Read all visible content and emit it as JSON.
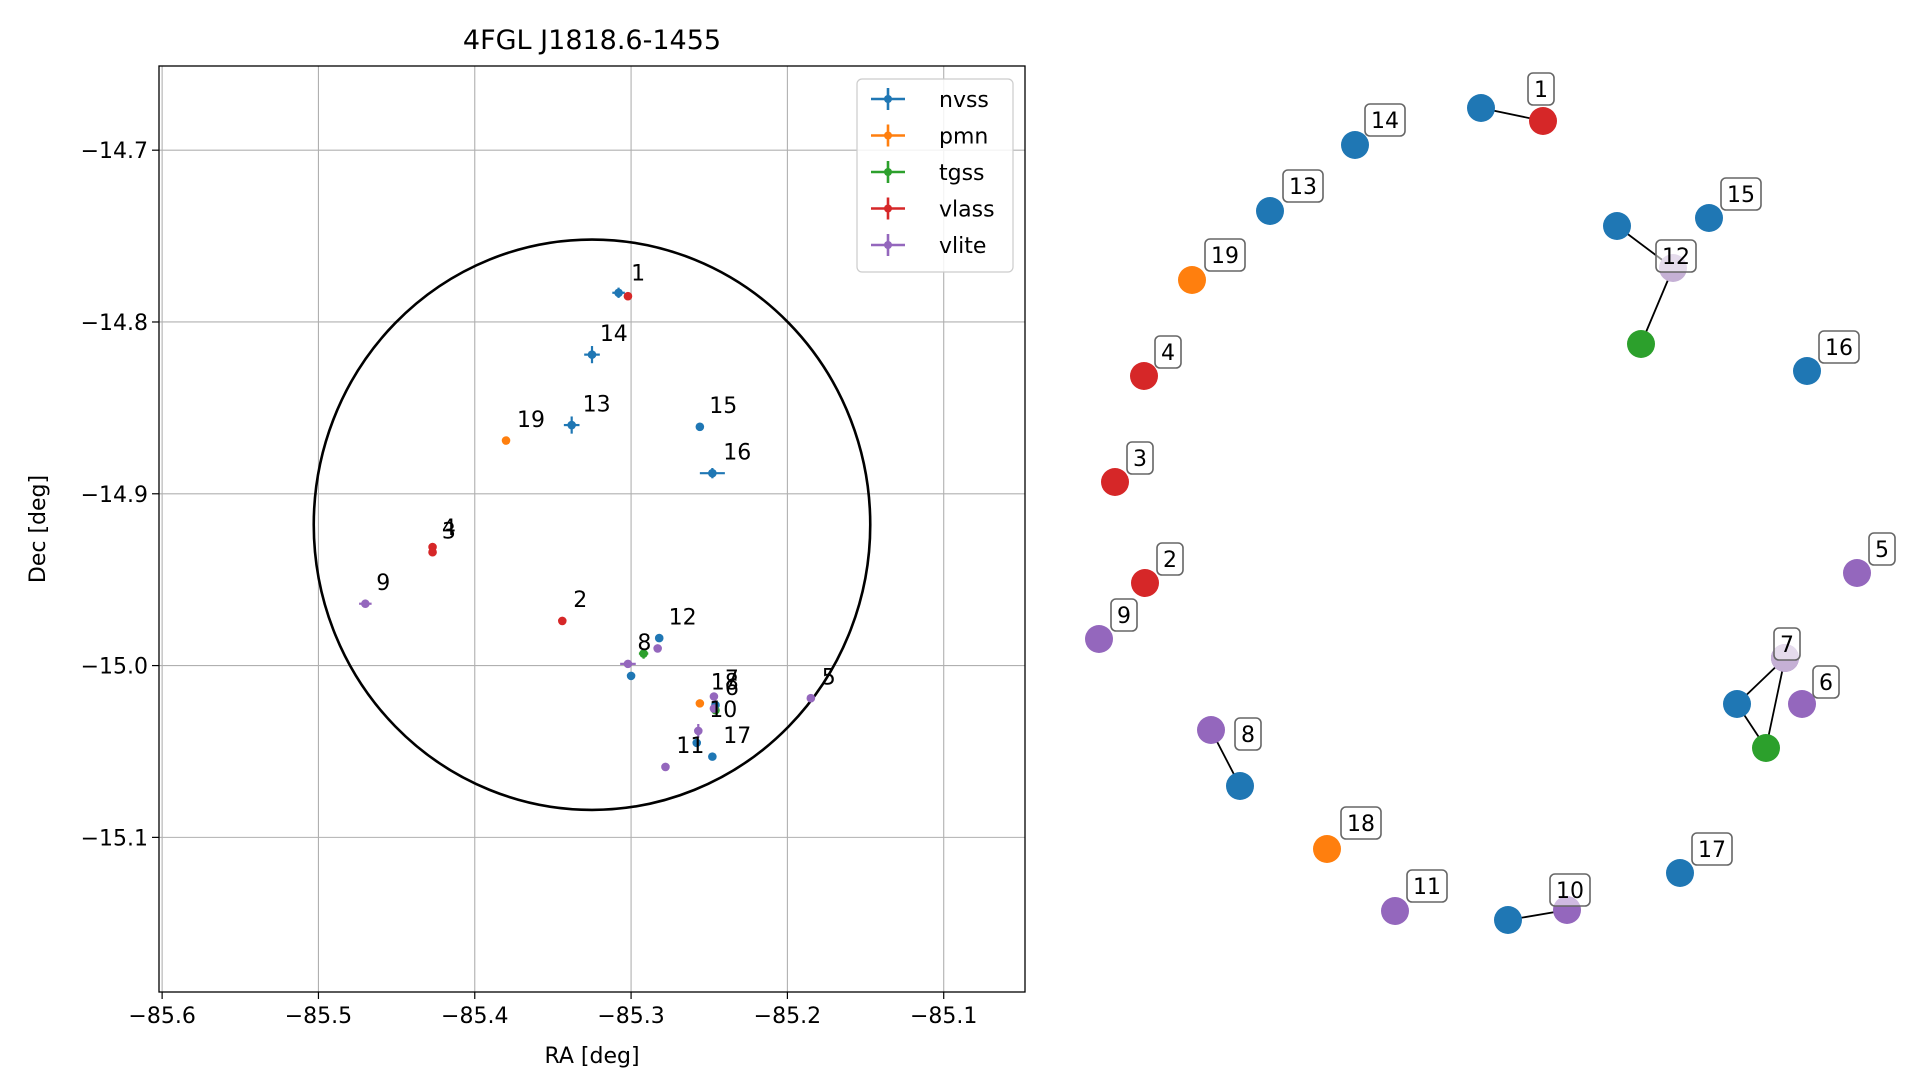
{
  "chart_data": [
    {
      "type": "scatter",
      "title": "4FGL J1818.6-1455",
      "xlabel": "RA [deg]",
      "ylabel": "Dec [deg]",
      "xlim": [
        -85.602,
        -85.048
      ],
      "ylim": [
        -15.19,
        -14.651
      ],
      "xticks": [
        -85.6,
        -85.5,
        -85.4,
        -85.3,
        -85.2,
        -85.1
      ],
      "xtick_labels": [
        "−85.6",
        "−85.5",
        "−85.4",
        "−85.3",
        "−85.2",
        "−85.1"
      ],
      "yticks": [
        -14.7,
        -14.8,
        -14.9,
        -15.0,
        -15.1
      ],
      "ytick_labels": [
        "−14.7",
        "−14.8",
        "−14.9",
        "−15.0",
        "−15.1"
      ],
      "grid": true,
      "legend_position": "top-right",
      "legend": [
        "nvss",
        "pmn",
        "tgss",
        "vlass",
        "vlite"
      ],
      "colors": {
        "nvss": "#1f77b4",
        "pmn": "#ff7f0e",
        "tgss": "#2ca02c",
        "vlass": "#d62728",
        "vlite": "#9467bd"
      },
      "ellipse": {
        "center": [
          -85.325,
          -14.918
        ],
        "ra_radius": 0.178,
        "dec_radius": 0.166
      },
      "series": [
        {
          "name": "nvss",
          "points": [
            {
              "x": -85.308,
              "y": -14.783,
              "xerr": 0.004,
              "yerr": 0.003
            },
            {
              "x": -85.325,
              "y": -14.819,
              "xerr": 0.005,
              "yerr": 0.005
            },
            {
              "x": -85.338,
              "y": -14.86,
              "xerr": 0.005,
              "yerr": 0.005
            },
            {
              "x": -85.256,
              "y": -14.861,
              "xerr": 0.002,
              "yerr": 0.002
            },
            {
              "x": -85.248,
              "y": -14.888,
              "xerr": 0.008,
              "yerr": 0.003
            },
            {
              "x": -85.282,
              "y": -14.984,
              "xerr": 0.002,
              "yerr": 0.002
            },
            {
              "x": -85.3,
              "y": -15.006,
              "xerr": 0.002,
              "yerr": 0.002
            },
            {
              "x": -85.248,
              "y": -15.053,
              "xerr": 0.002,
              "yerr": 0.002
            },
            {
              "x": -85.258,
              "y": -15.045,
              "xerr": 0.002,
              "yerr": 0.002
            },
            {
              "x": -85.246,
              "y": -15.023,
              "xerr": 0.002,
              "yerr": 0.002
            }
          ]
        },
        {
          "name": "pmn",
          "points": [
            {
              "x": -85.38,
              "y": -14.869,
              "xerr": 0.0,
              "yerr": 0.0
            },
            {
              "x": -85.256,
              "y": -15.022,
              "xerr": 0.0,
              "yerr": 0.0
            }
          ]
        },
        {
          "name": "tgss",
          "points": [
            {
              "x": -85.292,
              "y": -14.993,
              "xerr": 0.003,
              "yerr": 0.003
            },
            {
              "x": -85.246,
              "y": -15.026,
              "xerr": 0.002,
              "yerr": 0.002
            }
          ]
        },
        {
          "name": "vlass",
          "points": [
            {
              "x": -85.302,
              "y": -14.785,
              "xerr": 0.0,
              "yerr": 0.0
            },
            {
              "x": -85.427,
              "y": -14.931,
              "xerr": 0.0,
              "yerr": 0.0
            },
            {
              "x": -85.427,
              "y": -14.934,
              "xerr": 0.0,
              "yerr": 0.0
            },
            {
              "x": -85.344,
              "y": -14.974,
              "xerr": 0.0,
              "yerr": 0.0
            }
          ]
        },
        {
          "name": "vlite",
          "points": [
            {
              "x": -85.47,
              "y": -14.964,
              "xerr": 0.004,
              "yerr": 0.002
            },
            {
              "x": -85.302,
              "y": -14.999,
              "xerr": 0.005,
              "yerr": 0.002
            },
            {
              "x": -85.283,
              "y": -14.99,
              "xerr": 0.002,
              "yerr": 0.002
            },
            {
              "x": -85.185,
              "y": -15.019,
              "xerr": 0.002,
              "yerr": 0.002
            },
            {
              "x": -85.247,
              "y": -15.018,
              "xerr": 0.002,
              "yerr": 0.002
            },
            {
              "x": -85.247,
              "y": -15.025,
              "xerr": 0.002,
              "yerr": 0.002
            },
            {
              "x": -85.257,
              "y": -15.038,
              "xerr": 0.002,
              "yerr": 0.004
            },
            {
              "x": -85.278,
              "y": -15.059,
              "xerr": 0.002,
              "yerr": 0.002
            }
          ]
        }
      ],
      "annotations": [
        {
          "text": "1",
          "x": -85.3,
          "y": -14.776
        },
        {
          "text": "14",
          "x": -85.32,
          "y": -14.811
        },
        {
          "text": "19",
          "x": -85.373,
          "y": -14.861
        },
        {
          "text": "13",
          "x": -85.331,
          "y": -14.852
        },
        {
          "text": "15",
          "x": -85.25,
          "y": -14.853
        },
        {
          "text": "16",
          "x": -85.241,
          "y": -14.88
        },
        {
          "text": "4",
          "x": -85.421,
          "y": -14.924
        },
        {
          "text": "3",
          "x": -85.421,
          "y": -14.926
        },
        {
          "text": "9",
          "x": -85.463,
          "y": -14.956
        },
        {
          "text": "2",
          "x": -85.337,
          "y": -14.966
        },
        {
          "text": "12",
          "x": -85.276,
          "y": -14.976
        },
        {
          "text": "8",
          "x": -85.296,
          "y": -14.991
        },
        {
          "text": "5",
          "x": -85.178,
          "y": -15.011
        },
        {
          "text": "18",
          "x": -85.249,
          "y": -15.014
        },
        {
          "text": "7",
          "x": -85.24,
          "y": -15.012
        },
        {
          "text": "6",
          "x": -85.24,
          "y": -15.017
        },
        {
          "text": "10",
          "x": -85.25,
          "y": -15.03
        },
        {
          "text": "17",
          "x": -85.241,
          "y": -15.045
        },
        {
          "text": "11",
          "x": -85.271,
          "y": -15.051
        }
      ]
    },
    {
      "type": "network",
      "colors": {
        "nvss": "#1f77b4",
        "pmn": "#ff7f0e",
        "tgss": "#2ca02c",
        "vlass": "#d62728",
        "vlite": "#9467bd",
        "light_vlite": "#c5b0d5"
      },
      "nodes": [
        {
          "id": "n1",
          "cat": "nvss",
          "label": ""
        },
        {
          "id": "v1",
          "cat": "vlass",
          "label": "1"
        },
        {
          "id": "n14",
          "cat": "nvss",
          "label": "14"
        },
        {
          "id": "n13",
          "cat": "nvss",
          "label": "13"
        },
        {
          "id": "p19",
          "cat": "pmn",
          "label": "19"
        },
        {
          "id": "n15a",
          "cat": "nvss",
          "label": ""
        },
        {
          "id": "l12",
          "cat": "light_vlite",
          "label": "12"
        },
        {
          "id": "t12",
          "cat": "tgss",
          "label": ""
        },
        {
          "id": "n15",
          "cat": "nvss",
          "label": "15"
        },
        {
          "id": "v4",
          "cat": "vlass",
          "label": "4"
        },
        {
          "id": "n16",
          "cat": "nvss",
          "label": "16"
        },
        {
          "id": "v3",
          "cat": "vlass",
          "label": "3"
        },
        {
          "id": "v2",
          "cat": "vlass",
          "label": "2"
        },
        {
          "id": "u9",
          "cat": "vlite",
          "label": "9"
        },
        {
          "id": "u5",
          "cat": "vlite",
          "label": "5"
        },
        {
          "id": "u7a",
          "cat": "vlite",
          "label": ""
        },
        {
          "id": "n7",
          "cat": "nvss",
          "label": ""
        },
        {
          "id": "t7",
          "cat": "tgss",
          "label": ""
        },
        {
          "id": "l7",
          "cat": "light_vlite",
          "label": "7"
        },
        {
          "id": "u6",
          "cat": "vlite",
          "label": "6"
        },
        {
          "id": "u8",
          "cat": "vlite",
          "label": "8"
        },
        {
          "id": "n8",
          "cat": "nvss",
          "label": ""
        },
        {
          "id": "p18",
          "cat": "pmn",
          "label": "18"
        },
        {
          "id": "n17",
          "cat": "nvss",
          "label": "17"
        },
        {
          "id": "u11",
          "cat": "vlite",
          "label": "11"
        },
        {
          "id": "n10",
          "cat": "nvss",
          "label": ""
        },
        {
          "id": "u10",
          "cat": "vlite",
          "label": "10"
        }
      ],
      "edges": [
        [
          "n1",
          "v1"
        ],
        [
          "n15a",
          "l12"
        ],
        [
          "l12",
          "t12"
        ],
        [
          "n7",
          "u7a"
        ],
        [
          "n7",
          "t7"
        ],
        [
          "u7a",
          "t7"
        ],
        [
          "u8",
          "n8"
        ],
        [
          "n10",
          "u10"
        ]
      ]
    }
  ]
}
